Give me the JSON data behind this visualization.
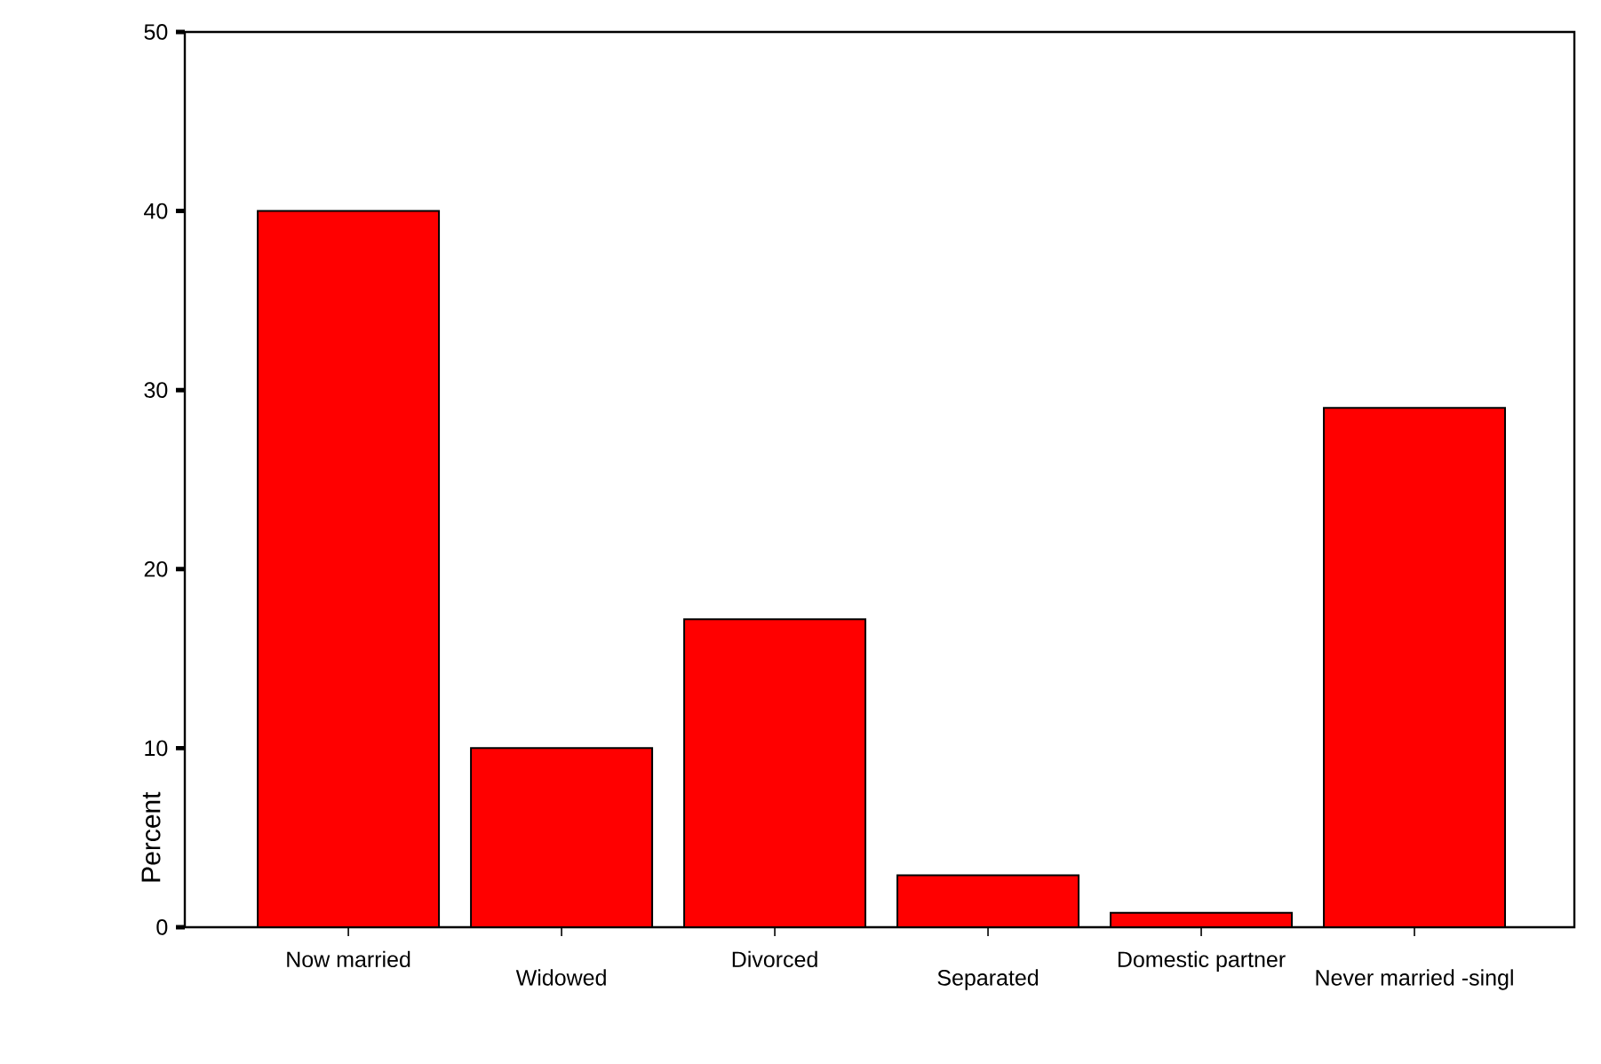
{
  "chart_data": {
    "type": "bar",
    "categories": [
      "Now married",
      "Widowed",
      "Divorced",
      "Separated",
      "Domestic partner",
      "Never married -singl"
    ],
    "values": [
      40,
      10,
      17.2,
      2.9,
      0.8,
      29.0
    ],
    "color": "#ff0000",
    "ylabel": "Percent",
    "ylim": [
      0,
      50
    ],
    "yticks": [
      0,
      10,
      20,
      30,
      40,
      50
    ],
    "grid": false
  }
}
